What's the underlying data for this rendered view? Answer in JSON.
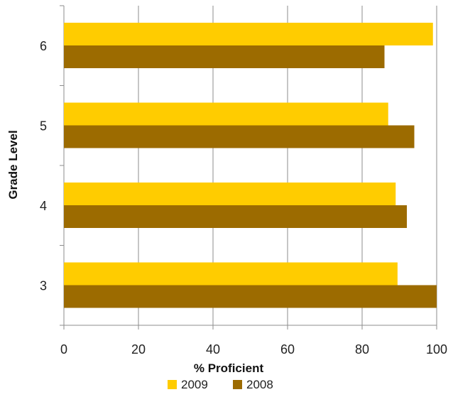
{
  "chart_data": {
    "type": "bar",
    "orientation": "horizontal",
    "title": "",
    "xlabel": "% Proficient",
    "ylabel": "Grade Level",
    "xlim": [
      0,
      100
    ],
    "x_ticks": [
      "0",
      "20",
      "40",
      "60",
      "80",
      "100"
    ],
    "grid": true,
    "legend_position": "bottom",
    "categories": [
      "6",
      "5",
      "4",
      "3"
    ],
    "series": [
      {
        "name": "2009",
        "color": "#FFCC00",
        "values": [
          99,
          87,
          89,
          89.5
        ]
      },
      {
        "name": "2008",
        "color": "#9C6B00",
        "values": [
          86,
          94,
          92,
          100
        ]
      }
    ]
  }
}
